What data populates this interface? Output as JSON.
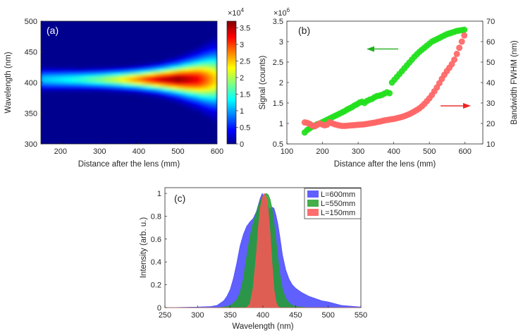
{
  "chart_data": [
    {
      "panel": "(a)",
      "type": "heatmap",
      "xlabel": "Distance after the lens (mm)",
      "ylabel": "Wavelength (nm)",
      "xlim": [
        150,
        600
      ],
      "ylim": [
        300,
        500
      ],
      "xticks": [
        200,
        300,
        400,
        500,
        600
      ],
      "yticks": [
        300,
        350,
        400,
        450,
        500
      ],
      "colorbar": {
        "min": 0,
        "max": 3.7,
        "ticks": [
          0,
          0.5,
          1,
          1.5,
          2,
          2.5,
          3,
          3.5
        ],
        "tick_labels": [
          "0",
          "0.5",
          "1",
          "1.5",
          "2",
          "2.5",
          "3",
          "3.5"
        ],
        "multiplier": "×10",
        "exponent": "4",
        "colormap": "jet"
      },
      "peak_wavelength": 405,
      "intensity_profile": {
        "distance": [
          150,
          200,
          250,
          300,
          350,
          400,
          450,
          500,
          550,
          600
        ],
        "peak_counts": [
          12000,
          13500,
          15500,
          18500,
          22500,
          28000,
          34000,
          36500,
          33000,
          24000
        ],
        "fwhm_nm": [
          22,
          21,
          20,
          20,
          21,
          23,
          27,
          35,
          48,
          68
        ]
      }
    },
    {
      "panel": "(b)",
      "type": "scatter",
      "xlabel": "Distance after the lens (mm)",
      "ylabel": "Signal (counts)",
      "ylabel_right": "Bandwidth FWHM (nm)",
      "xlim": [
        100,
        650
      ],
      "ylim": [
        0.5,
        3.5
      ],
      "ylim_right": [
        10,
        70
      ],
      "xticks": [
        100,
        200,
        300,
        400,
        500,
        600
      ],
      "yticks": [
        0.5,
        1,
        1.5,
        2,
        2.5,
        3,
        3.5
      ],
      "yticks_right": [
        10,
        20,
        30,
        40,
        50,
        60,
        70
      ],
      "y_multiplier": "×10",
      "y_exponent": "6",
      "series": [
        {
          "axis": "left",
          "color": "#22e01d",
          "x": [
            150,
            157,
            164,
            171,
            178,
            185,
            192,
            199,
            206,
            213,
            220,
            227,
            234,
            241,
            248,
            255,
            262,
            269,
            276,
            283,
            290,
            297,
            304,
            311,
            318,
            325,
            332,
            339,
            346,
            353,
            360,
            367,
            374,
            381,
            388,
            395,
            402,
            409,
            416,
            423,
            430,
            437,
            444,
            451,
            458,
            465,
            472,
            479,
            486,
            493,
            500,
            507,
            514,
            521,
            528,
            535,
            542,
            549,
            556,
            563,
            570,
            577,
            584,
            591,
            598
          ],
          "y": [
            0.78,
            0.84,
            0.88,
            0.92,
            0.95,
            0.98,
            1.0,
            1.03,
            1.06,
            1.09,
            1.12,
            1.15,
            1.18,
            1.21,
            1.24,
            1.27,
            1.3,
            1.34,
            1.37,
            1.4,
            1.44,
            1.47,
            1.51,
            1.53,
            1.5,
            1.55,
            1.58,
            1.6,
            1.64,
            1.67,
            1.68,
            1.7,
            1.73,
            1.76,
            1.74,
            2.0,
            2.07,
            2.14,
            2.21,
            2.28,
            2.35,
            2.42,
            2.49,
            2.56,
            2.63,
            2.69,
            2.75,
            2.8,
            2.85,
            2.9,
            2.95,
            3.0,
            3.03,
            3.06,
            3.09,
            3.12,
            3.15,
            3.18,
            3.2,
            3.22,
            3.24,
            3.26,
            3.27,
            3.28,
            3.29
          ]
        },
        {
          "axis": "right",
          "color": "#ff6666",
          "x": [
            150,
            157,
            164,
            171,
            178,
            185,
            192,
            199,
            206,
            213,
            220,
            227,
            234,
            241,
            248,
            255,
            262,
            269,
            276,
            283,
            290,
            297,
            304,
            311,
            318,
            325,
            332,
            339,
            346,
            353,
            360,
            367,
            374,
            381,
            388,
            395,
            402,
            409,
            416,
            423,
            430,
            437,
            444,
            451,
            458,
            465,
            472,
            479,
            486,
            493,
            500,
            507,
            514,
            521,
            528,
            535,
            542,
            549,
            556,
            563,
            570,
            577,
            584,
            591,
            598
          ],
          "y": [
            20.5,
            20.3,
            19.8,
            19.0,
            18.6,
            19.3,
            20.0,
            19.5,
            19.1,
            19.4,
            20.6,
            20.1,
            19.6,
            19.3,
            19.0,
            18.8,
            18.8,
            18.9,
            19.0,
            19.1,
            19.2,
            19.3,
            19.4,
            19.5,
            19.6,
            19.8,
            20.0,
            20.2,
            20.4,
            20.7,
            20.9,
            21.2,
            21.5,
            21.7,
            21.9,
            22.1,
            22.3,
            22.6,
            22.9,
            23.2,
            23.6,
            24.1,
            24.6,
            25.2,
            25.9,
            26.6,
            27.4,
            28.4,
            29.6,
            30.9,
            32.3,
            33.9,
            35.7,
            37.6,
            39.7,
            41.8,
            43.8,
            45.6,
            47.2,
            49.0,
            51.2,
            54.0,
            57.0,
            60.0,
            63.0
          ]
        }
      ],
      "arrows": [
        {
          "direction": "left",
          "color": "#22b01d"
        },
        {
          "direction": "right",
          "color": "#ee2222"
        }
      ]
    },
    {
      "panel": "(c)",
      "type": "area",
      "xlabel": "Wavelength (nm)",
      "ylabel": "Intensity (arb. u.)",
      "xlim": [
        250,
        550
      ],
      "ylim": [
        0,
        1.05
      ],
      "xticks": [
        250,
        300,
        350,
        400,
        450,
        500,
        550
      ],
      "yticks": [
        0,
        0.2,
        0.4,
        0.6,
        0.8,
        1
      ],
      "legend_position": "top-right",
      "x": [
        250,
        300,
        320,
        330,
        340,
        345,
        350,
        355,
        360,
        365,
        370,
        375,
        380,
        385,
        390,
        393,
        396,
        399,
        402,
        405,
        408,
        411,
        414,
        417,
        420,
        423,
        426,
        430,
        435,
        440,
        445,
        450,
        460,
        470,
        480,
        490,
        500,
        520,
        550
      ],
      "series": [
        {
          "name": "L=600mm",
          "color": "#4444ff",
          "values": [
            0,
            0.005,
            0.01,
            0.02,
            0.06,
            0.1,
            0.16,
            0.26,
            0.39,
            0.54,
            0.64,
            0.71,
            0.75,
            0.78,
            0.84,
            0.9,
            0.96,
            1.0,
            0.97,
            0.93,
            0.88,
            0.86,
            0.88,
            0.87,
            0.81,
            0.73,
            0.62,
            0.46,
            0.33,
            0.25,
            0.2,
            0.17,
            0.13,
            0.1,
            0.08,
            0.06,
            0.05,
            0.02,
            0.005
          ]
        },
        {
          "name": "L=550mm",
          "color": "#22a02a",
          "values": [
            0,
            0,
            0,
            0,
            0.005,
            0.01,
            0.02,
            0.04,
            0.07,
            0.13,
            0.25,
            0.44,
            0.62,
            0.74,
            0.83,
            0.89,
            0.94,
            0.97,
            0.99,
            1.0,
            0.99,
            0.95,
            0.87,
            0.74,
            0.59,
            0.43,
            0.29,
            0.16,
            0.08,
            0.04,
            0.02,
            0.01,
            0.005,
            0,
            0,
            0,
            0,
            0,
            0
          ]
        },
        {
          "name": "L=150mm",
          "color": "#ff5555",
          "values": [
            0,
            0,
            0,
            0,
            0,
            0,
            0,
            0,
            0,
            0,
            0,
            0,
            0.03,
            0.17,
            0.47,
            0.7,
            0.87,
            0.96,
            1.0,
            0.97,
            0.86,
            0.66,
            0.39,
            0.16,
            0.05,
            0.01,
            0,
            0,
            0,
            0,
            0,
            0,
            0,
            0,
            0,
            0,
            0,
            0,
            0
          ]
        }
      ]
    }
  ]
}
